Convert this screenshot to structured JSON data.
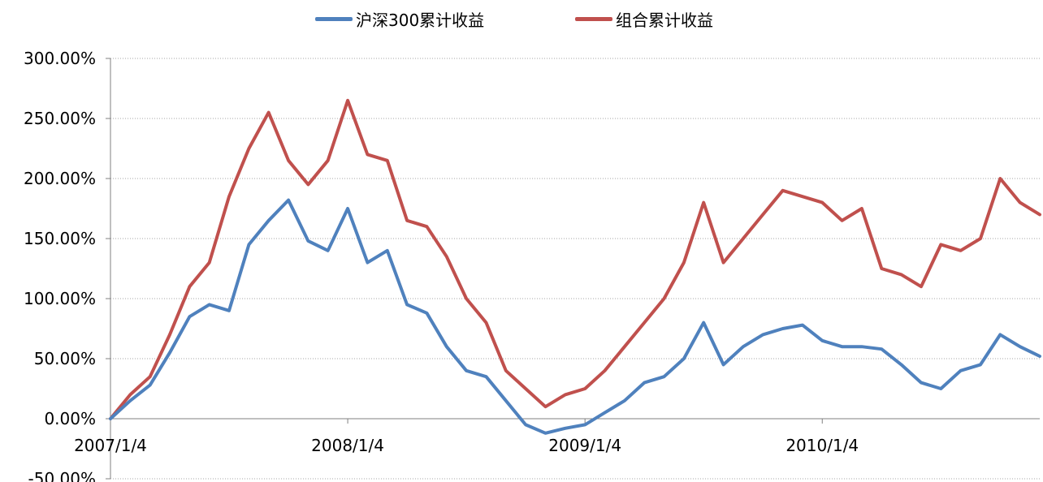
{
  "chart_data": {
    "type": "line",
    "title": "",
    "xlabel": "",
    "ylabel": "",
    "x_tick_labels": [
      "2007/1/4",
      "2008/1/4",
      "2009/1/4",
      "2010/1/4"
    ],
    "y_tick_labels": [
      "-50.00%",
      "0.00%",
      "50.00%",
      "100.00%",
      "150.00%",
      "200.00%",
      "250.00%",
      "300.00%"
    ],
    "ylim": [
      -50,
      300
    ],
    "y_unit": "%",
    "grid": "horizontal dotted",
    "legend_position": "top-center",
    "x": [
      "2007/1/4",
      "2007/2/4",
      "2007/3/4",
      "2007/4/4",
      "2007/5/4",
      "2007/6/4",
      "2007/7/4",
      "2007/8/4",
      "2007/9/4",
      "2007/10/4",
      "2007/11/4",
      "2007/12/4",
      "2008/1/4",
      "2008/2/4",
      "2008/3/4",
      "2008/4/4",
      "2008/5/4",
      "2008/6/4",
      "2008/7/4",
      "2008/8/4",
      "2008/9/4",
      "2008/10/4",
      "2008/11/4",
      "2008/12/4",
      "2009/1/4",
      "2009/2/4",
      "2009/3/4",
      "2009/4/4",
      "2009/5/4",
      "2009/6/4",
      "2009/7/4",
      "2009/8/4",
      "2009/9/4",
      "2009/10/4",
      "2009/11/4",
      "2009/12/4",
      "2010/1/4",
      "2010/2/4",
      "2010/3/4",
      "2010/4/4",
      "2010/5/4",
      "2010/6/4",
      "2010/7/4",
      "2010/8/4",
      "2010/9/4",
      "2010/10/4",
      "2010/11/4",
      "2010/12/4"
    ],
    "series": [
      {
        "name": "沪深300累计收益",
        "color": "#4F81BD",
        "values": [
          0,
          15,
          28,
          55,
          85,
          95,
          90,
          145,
          165,
          182,
          148,
          140,
          175,
          130,
          140,
          95,
          88,
          60,
          40,
          35,
          15,
          -5,
          -12,
          -8,
          -5,
          5,
          15,
          30,
          35,
          50,
          80,
          45,
          60,
          70,
          75,
          78,
          65,
          60,
          60,
          58,
          45,
          30,
          25,
          40,
          45,
          70,
          60,
          52
        ]
      },
      {
        "name": "组合累计收益",
        "color": "#C0504D",
        "values": [
          0,
          20,
          35,
          70,
          110,
          130,
          185,
          225,
          255,
          215,
          195,
          215,
          265,
          220,
          215,
          165,
          160,
          135,
          100,
          80,
          40,
          25,
          10,
          20,
          25,
          40,
          60,
          80,
          100,
          130,
          180,
          130,
          150,
          170,
          190,
          185,
          180,
          165,
          175,
          125,
          120,
          110,
          145,
          140,
          150,
          200,
          180,
          170
        ]
      }
    ]
  }
}
